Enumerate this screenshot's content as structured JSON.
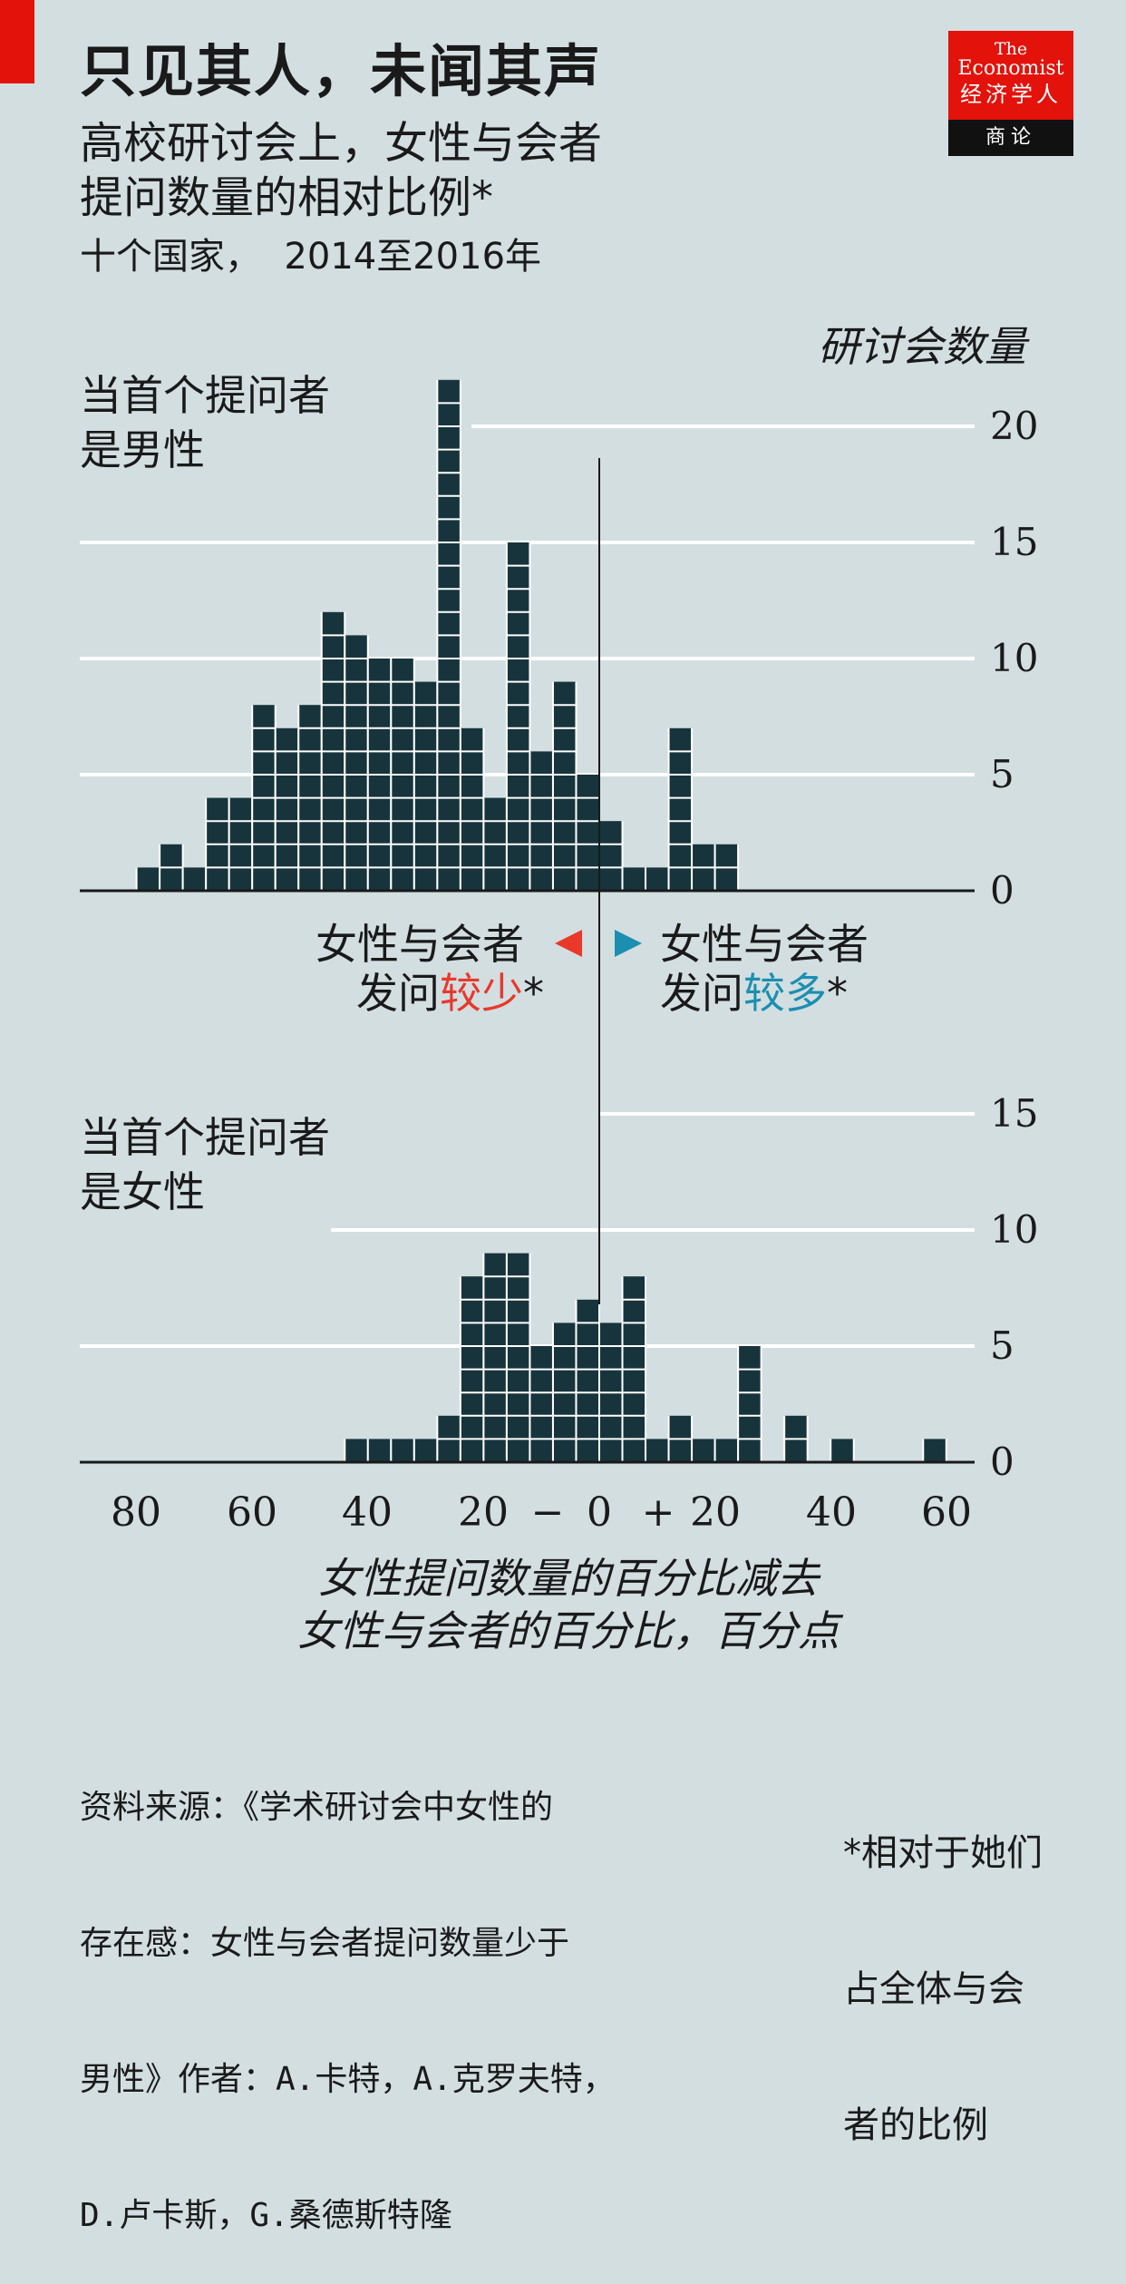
{
  "header": {
    "title": "只见其人，未闻其声",
    "subtitle_lines": [
      "高校研讨会上，女性与会者",
      "提问数量的相对比例*"
    ],
    "subtitle2": "十个国家，  2014至2016年"
  },
  "logo": {
    "line1": "The",
    "line2": "Economist",
    "line3": "经济学人",
    "line4": "商论"
  },
  "chart_data": {
    "type": "bar",
    "y_axis_title": "研讨会数量",
    "x_label_lines": [
      "女性提问数量的百分比减去",
      "女性与会者的百分比，百分点"
    ],
    "x_ticks": [
      "80",
      "60",
      "40",
      "20",
      "−",
      "0",
      "+",
      "20",
      "40",
      "60"
    ],
    "bin_width": 4,
    "annotation_left": {
      "line1": "女性与会者",
      "line2_prefix": "发问",
      "line2_highlight": "较少",
      "line2_suffix": "*",
      "color": "#e8392b"
    },
    "annotation_right": {
      "line1": "女性与会者",
      "line2_prefix": "发问",
      "line2_highlight": "较多",
      "line2_suffix": "*",
      "color": "#1b8fb0"
    },
    "panels": [
      {
        "label_lines": [
          "当首个提问者",
          "是男性"
        ],
        "y_ticks": [
          0,
          5,
          10,
          15,
          20
        ],
        "bins": [
          {
            "x": -78,
            "count": 1
          },
          {
            "x": -74,
            "count": 2
          },
          {
            "x": -70,
            "count": 1
          },
          {
            "x": -66,
            "count": 4
          },
          {
            "x": -62,
            "count": 4
          },
          {
            "x": -58,
            "count": 8
          },
          {
            "x": -54,
            "count": 7
          },
          {
            "x": -50,
            "count": 8
          },
          {
            "x": -46,
            "count": 12
          },
          {
            "x": -42,
            "count": 11
          },
          {
            "x": -38,
            "count": 10
          },
          {
            "x": -34,
            "count": 10
          },
          {
            "x": -30,
            "count": 9
          },
          {
            "x": -26,
            "count": 22
          },
          {
            "x": -22,
            "count": 7
          },
          {
            "x": -18,
            "count": 4
          },
          {
            "x": -14,
            "count": 15
          },
          {
            "x": -10,
            "count": 6
          },
          {
            "x": -6,
            "count": 9
          },
          {
            "x": -2,
            "count": 5
          },
          {
            "x": 2,
            "count": 3
          },
          {
            "x": 6,
            "count": 1
          },
          {
            "x": 10,
            "count": 1
          },
          {
            "x": 14,
            "count": 7
          },
          {
            "x": 18,
            "count": 2
          },
          {
            "x": 22,
            "count": 2
          }
        ]
      },
      {
        "label_lines": [
          "当首个提问者",
          "是女性"
        ],
        "y_ticks": [
          0,
          5,
          10,
          15
        ],
        "bins": [
          {
            "x": -42,
            "count": 1
          },
          {
            "x": -38,
            "count": 1
          },
          {
            "x": -34,
            "count": 1
          },
          {
            "x": -30,
            "count": 1
          },
          {
            "x": -26,
            "count": 2
          },
          {
            "x": -22,
            "count": 8
          },
          {
            "x": -18,
            "count": 9
          },
          {
            "x": -14,
            "count": 9
          },
          {
            "x": -10,
            "count": 5
          },
          {
            "x": -6,
            "count": 6
          },
          {
            "x": -2,
            "count": 7
          },
          {
            "x": 2,
            "count": 6
          },
          {
            "x": 6,
            "count": 8
          },
          {
            "x": 10,
            "count": 1
          },
          {
            "x": 14,
            "count": 2
          },
          {
            "x": 18,
            "count": 1
          },
          {
            "x": 22,
            "count": 1
          },
          {
            "x": 26,
            "count": 5
          },
          {
            "x": 34,
            "count": 2
          },
          {
            "x": 42,
            "count": 1
          },
          {
            "x": 58,
            "count": 1
          }
        ]
      }
    ]
  },
  "source_lines": [
    "资料来源：《学术研讨会中女性的",
    "存在感：女性与会者提问数量少于",
    "男性》作者：A.卡特，A.克罗夫特，",
    "D.卢卡斯，G.桑德斯特隆"
  ],
  "footnote_lines": [
    "*相对于她们",
    "占全体与会",
    "者的比例"
  ],
  "colors": {
    "background": "#d3dee1",
    "bars": "#17343c",
    "grid": "#ffffff",
    "accent_red": "#e3120b"
  }
}
